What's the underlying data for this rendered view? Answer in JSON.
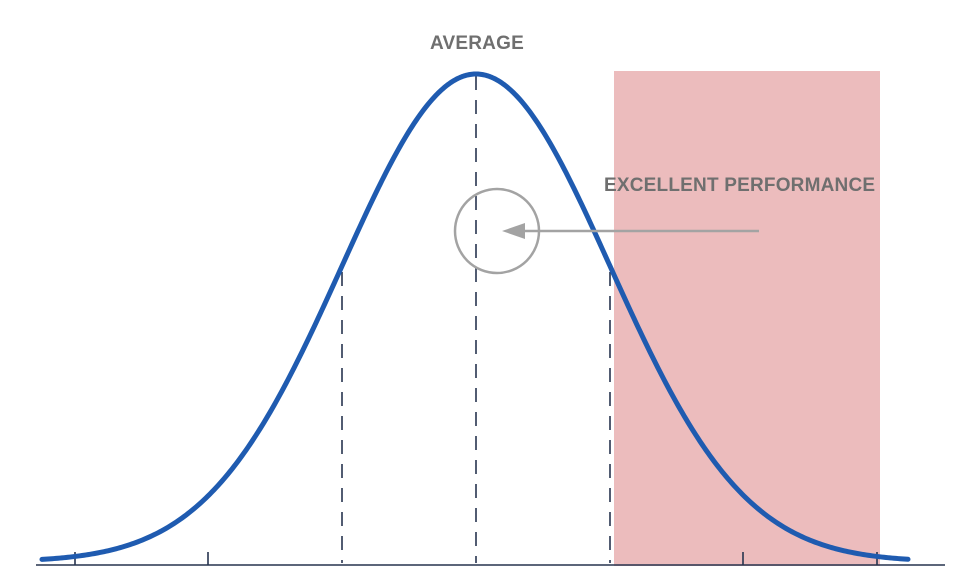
{
  "labels": {
    "average": "AVERAGE",
    "excellent": "EXCELLENT PERFORMANCE"
  },
  "colors": {
    "curve": "#1f5bb0",
    "highlight": "#e5a5a7",
    "dashed": "#27344f",
    "axis": "#27344f",
    "annotation": "#a3a3a3",
    "label_text": "#6f6f6f"
  },
  "icons": {
    "arrow": "arrow-left-icon",
    "circle": "circle-marker-icon"
  }
}
